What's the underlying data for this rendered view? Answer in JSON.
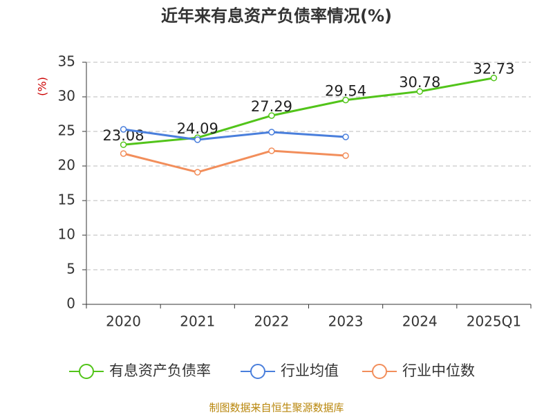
{
  "chart_data": {
    "type": "line",
    "title": "近年来有息资产负债率情况(%)",
    "y_label": "(%)",
    "categories": [
      "2020",
      "2021",
      "2022",
      "2023",
      "2024",
      "2025Q1"
    ],
    "series": [
      {
        "name": "有息资产负债率",
        "color": "#52c41a",
        "values": [
          23.08,
          24.09,
          27.29,
          29.54,
          30.78,
          32.73
        ],
        "data_labels": true
      },
      {
        "name": "行业均值",
        "color": "#4a7fdc",
        "values": [
          25.3,
          23.8,
          24.9,
          24.2,
          null,
          null
        ]
      },
      {
        "name": "行业中位数",
        "color": "#f28e5b",
        "values": [
          21.8,
          19.1,
          22.2,
          21.5,
          null,
          null
        ]
      }
    ],
    "ylim": [
      0,
      35
    ],
    "yticks": [
      0,
      5,
      10,
      15,
      20,
      25,
      30,
      35
    ],
    "grid": true,
    "legend": "bottom",
    "source": "制图数据来自恒生聚源数据库"
  }
}
